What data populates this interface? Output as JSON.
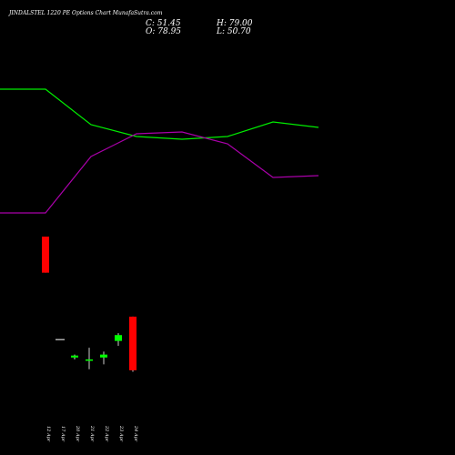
{
  "header": {
    "title": "JINDALSTEL 1220 PE Options Chart MunafaSutra.com",
    "close_label": "C: 51.45",
    "open_label": "O: 78.95",
    "high_label": "H: 79.00",
    "low_label": "L: 50.70"
  },
  "colors": {
    "background": "#000000",
    "up": "#00ff00",
    "down": "#ff0000",
    "line_green": "#00ee00",
    "line_magenta": "#aa00aa",
    "text": "#ffffff"
  },
  "chart_data": {
    "type": "candlestick",
    "title": "JINDALSTEL 1220 PE Options Chart MunafaSutra.com",
    "grid": false,
    "y_price_range": [
      40,
      125
    ],
    "categories": [
      "12 Apr",
      "17 Apr",
      "20 Apr",
      "21 Apr",
      "22 Apr",
      "23 Apr",
      "24 Apr"
    ],
    "candles": [
      {
        "date": "12 Apr",
        "open": 120.0,
        "high": 120.0,
        "low": 101.5,
        "close": 101.5
      },
      {
        "date": "17 Apr",
        "open": 67.5,
        "high": 67.5,
        "low": 67.5,
        "close": 67.5
      },
      {
        "date": "20 Apr",
        "open": 58.0,
        "high": 59.5,
        "low": 57.0,
        "close": 59.0
      },
      {
        "date": "21 Apr",
        "open": 56.5,
        "high": 63.0,
        "low": 52.0,
        "close": 57.0
      },
      {
        "date": "22 Apr",
        "open": 58.0,
        "high": 61.0,
        "low": 54.5,
        "close": 59.5
      },
      {
        "date": "23 Apr",
        "open": 66.5,
        "high": 70.5,
        "low": 64.0,
        "close": 69.5
      },
      {
        "date": "24 Apr",
        "open": 78.95,
        "high": 79.0,
        "low": 50.7,
        "close": 51.45
      }
    ],
    "indicator_lines": [
      {
        "color": "#00ee00",
        "values": [
          98,
          98,
          137,
          150,
          153,
          150,
          134,
          140
        ]
      },
      {
        "color": "#aa00aa",
        "values": [
          234,
          234,
          172,
          147,
          145,
          158,
          195,
          193
        ]
      }
    ]
  }
}
